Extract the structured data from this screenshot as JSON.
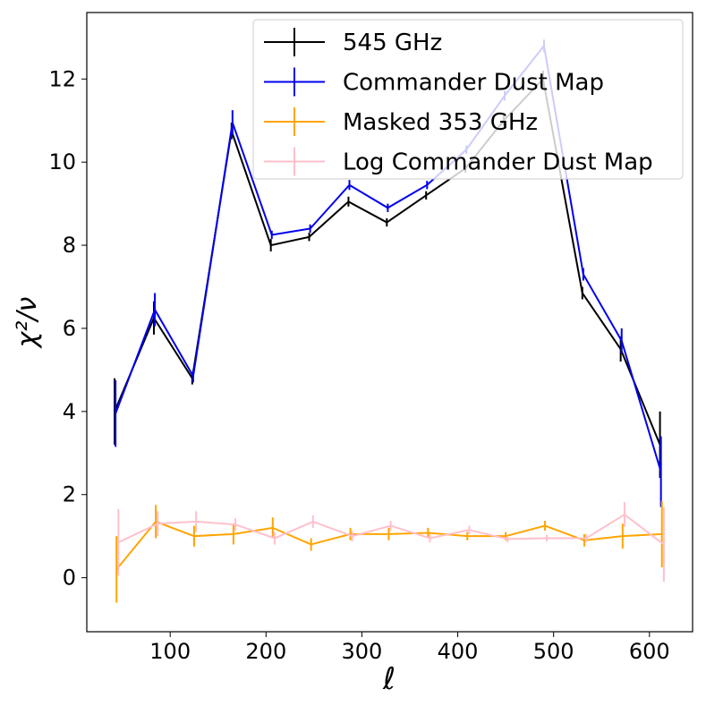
{
  "chart_data": {
    "type": "errorbar",
    "xlabel": "ℓ",
    "ylabel": "χ²/ν",
    "xlim": [
      13,
      645
    ],
    "ylim": [
      -1.3,
      13.6
    ],
    "xticks": [
      100,
      200,
      300,
      400,
      500,
      600
    ],
    "yticks": [
      0,
      2,
      4,
      6,
      8,
      10,
      12
    ],
    "legend": "upper right",
    "series": [
      {
        "name": "545 GHz",
        "color": "#000000",
        "x": [
          42,
          83,
          123,
          164,
          205,
          245,
          286,
          326,
          367,
          408,
          448,
          489,
          530,
          570,
          611
        ],
        "values": [
          4.0,
          6.25,
          4.8,
          10.75,
          8.0,
          8.2,
          9.05,
          8.55,
          9.2,
          9.85,
          11.0,
          12.0,
          6.85,
          5.5,
          3.2
        ],
        "errors": [
          0.8,
          0.4,
          0.15,
          0.2,
          0.15,
          0.1,
          0.12,
          0.1,
          0.1,
          0.1,
          0.12,
          0.2,
          0.15,
          0.3,
          0.8
        ]
      },
      {
        "name": "Commander Dust Map",
        "color": "#0000ee",
        "x": [
          43,
          84,
          124,
          165,
          206,
          246,
          287,
          327,
          368,
          409,
          449,
          490,
          531,
          571,
          612
        ],
        "values": [
          3.95,
          6.45,
          4.85,
          10.95,
          8.25,
          8.4,
          9.45,
          8.9,
          9.45,
          10.3,
          11.6,
          12.8,
          7.3,
          5.7,
          2.55
        ],
        "errors": [
          0.8,
          0.4,
          0.15,
          0.3,
          0.1,
          0.1,
          0.12,
          0.1,
          0.1,
          0.1,
          0.12,
          0.15,
          0.15,
          0.3,
          0.85
        ]
      },
      {
        "name": "Masked 353 GHz",
        "color": "#ffa500",
        "x": [
          44,
          85,
          125,
          166,
          207,
          247,
          288,
          328,
          369,
          410,
          450,
          491,
          532,
          572,
          613
        ],
        "values": [
          0.2,
          1.35,
          1.0,
          1.05,
          1.2,
          0.8,
          1.05,
          1.05,
          1.08,
          1.0,
          1.0,
          1.25,
          0.9,
          1.0,
          1.05
        ],
        "errors": [
          0.8,
          0.4,
          0.25,
          0.25,
          0.25,
          0.15,
          0.15,
          0.15,
          0.12,
          0.1,
          0.1,
          0.12,
          0.15,
          0.3,
          0.8
        ]
      },
      {
        "name": "Log Commander Dust Map",
        "color": "#ffc0cb",
        "x": [
          46,
          87,
          127,
          168,
          209,
          249,
          290,
          330,
          371,
          412,
          452,
          493,
          534,
          574,
          615
        ],
        "values": [
          0.85,
          1.3,
          1.35,
          1.28,
          0.95,
          1.35,
          1.0,
          1.25,
          0.95,
          1.15,
          0.93,
          0.95,
          0.95,
          1.52,
          0.8
        ],
        "errors": [
          0.8,
          0.3,
          0.25,
          0.15,
          0.15,
          0.15,
          0.12,
          0.12,
          0.1,
          0.1,
          0.08,
          0.08,
          0.1,
          0.3,
          0.9
        ]
      }
    ]
  }
}
